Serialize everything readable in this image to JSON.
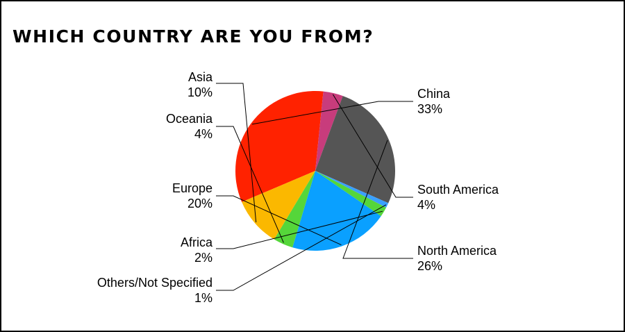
{
  "chart_data": {
    "type": "pie",
    "title": "WHICH COUNTRY ARE YOU FROM?",
    "slices": [
      {
        "label": "China",
        "value": 33,
        "display": "33%",
        "color": "#ff2200"
      },
      {
        "label": "South America",
        "value": 4,
        "display": "4%",
        "color": "#c83c7c"
      },
      {
        "label": "North America",
        "value": 26,
        "display": "26%",
        "color": "#555555"
      },
      {
        "label": "Others/Not Specified",
        "value": 1,
        "display": "1%",
        "color": "#3aa0ff"
      },
      {
        "label": "Africa",
        "value": 2,
        "display": "2%",
        "color": "#55d63a"
      },
      {
        "label": "Europe",
        "value": 20,
        "display": "20%",
        "color": "#0aa0ff"
      },
      {
        "label": "Oceania",
        "value": 4,
        "display": "4%",
        "color": "#55d63a"
      },
      {
        "label": "Asia",
        "value": 10,
        "display": "10%",
        "color": "#fbb800"
      }
    ],
    "legend": "none"
  }
}
